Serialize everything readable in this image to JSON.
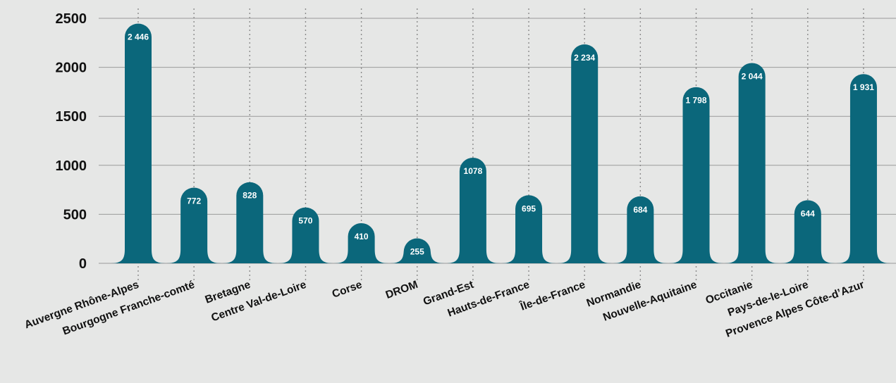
{
  "chart_data": {
    "type": "bar",
    "title": "",
    "xlabel": "",
    "ylabel": "",
    "categories": [
      "Auvergne Rhône-Alpes",
      "Bourgogne Franche-comté",
      "Bretagne",
      "Centre Val-de-Loire",
      "Corse",
      "DROM",
      "Grand-Est",
      "Hauts-de-France",
      "Île-de-France",
      "Normandie",
      "Nouvelle-Aquitaine",
      "Occitanie",
      "Pays-de-le-Loire",
      "Provence Alpes Côte-d’Azur"
    ],
    "values": [
      2446,
      772,
      828,
      570,
      410,
      255,
      1078,
      695,
      2234,
      684,
      1798,
      2044,
      644,
      1931
    ],
    "value_labels": [
      "2 446",
      "772",
      "828",
      "570",
      "410",
      "255",
      "1078",
      "695",
      "2 234",
      "684",
      "1 798",
      "2 044",
      "644",
      "1 931"
    ],
    "ylim": [
      0,
      2500
    ],
    "yticks": [
      0,
      500,
      1000,
      1500,
      2000,
      2500
    ],
    "ytick_labels": [
      "0",
      "500",
      "1000",
      "1500",
      "2000",
      "2500"
    ],
    "grid": true,
    "legend": "none",
    "colors": {
      "bar": "#0b677b",
      "background": "#e6e7e6",
      "grid": "#9a9a9a",
      "text": "#111111",
      "value_text": "#ffffff"
    }
  }
}
